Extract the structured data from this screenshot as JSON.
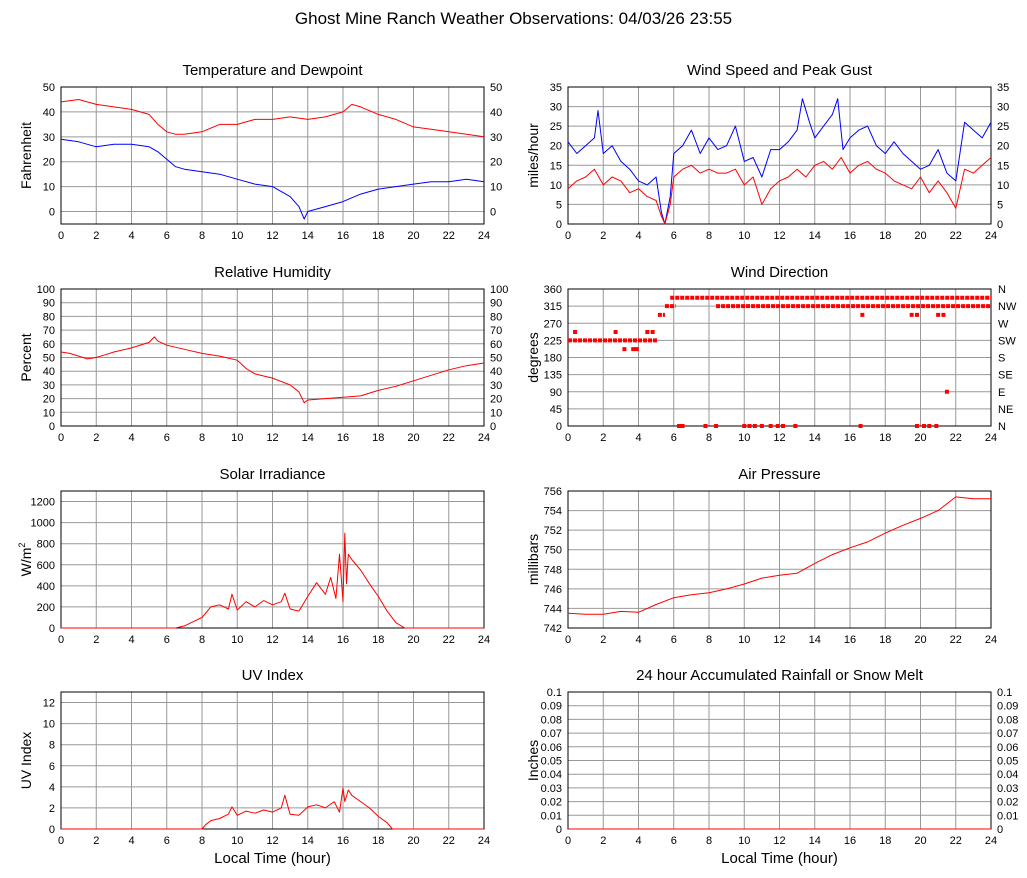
{
  "page": {
    "title": "Ghost Mine Ranch Weather Observations: 04/03/26 23:55"
  },
  "colors": {
    "red": "#ff0000",
    "blue": "#0000ff",
    "grid": "#999999"
  },
  "chart_data": [
    {
      "id": "temp",
      "type": "line",
      "title": "Temperature and Dewpoint",
      "ylabel": "Fahrenheit",
      "xlim": [
        0,
        24
      ],
      "ylim": [
        -5,
        50
      ],
      "yticks": [
        0,
        10,
        20,
        30,
        40,
        50
      ],
      "ytick_labels_right": true,
      "series": [
        {
          "color": "#ff0000",
          "x": [
            0,
            1,
            2,
            3,
            4,
            5,
            5.5,
            6,
            6.5,
            7,
            8,
            9,
            10,
            11,
            12,
            13,
            14,
            15,
            15.5,
            16,
            16.5,
            17,
            18,
            19,
            20,
            21,
            22,
            23,
            24
          ],
          "y": [
            44,
            45,
            43,
            42,
            41,
            39,
            35,
            32,
            31,
            31,
            32,
            35,
            35,
            37,
            37,
            38,
            37,
            38,
            39,
            40,
            43,
            42,
            39,
            37,
            34,
            33,
            32,
            31,
            30
          ]
        },
        {
          "color": "#0000ff",
          "x": [
            0,
            1,
            2,
            3,
            4,
            5,
            5.5,
            6,
            6.5,
            7,
            8,
            9,
            10,
            11,
            12,
            13,
            13.5,
            13.8,
            14,
            15,
            16,
            17,
            18,
            19,
            20,
            21,
            22,
            23,
            24
          ],
          "y": [
            29,
            28,
            26,
            27,
            27,
            26,
            24,
            21,
            18,
            17,
            16,
            15,
            13,
            11,
            10,
            6,
            2,
            -3,
            0,
            2,
            4,
            7,
            9,
            10,
            11,
            12,
            12,
            13,
            12
          ]
        }
      ]
    },
    {
      "id": "wind",
      "type": "line",
      "title": "Wind Speed and Peak Gust",
      "ylabel": "miles/hour",
      "xlim": [
        0,
        24
      ],
      "ylim": [
        0,
        35
      ],
      "yticks": [
        0,
        5,
        10,
        15,
        20,
        25,
        30,
        35
      ],
      "ytick_labels_right": true,
      "series": [
        {
          "color": "#0000ff",
          "x": [
            0,
            0.5,
            1,
            1.5,
            1.7,
            2,
            2.5,
            3,
            3.5,
            4,
            4.5,
            5,
            5.3,
            5.5,
            5.8,
            6,
            6.5,
            7,
            7.5,
            8,
            8.5,
            9,
            9.5,
            10,
            10.5,
            11,
            11.5,
            12,
            12.5,
            13,
            13.3,
            13.7,
            14,
            14.5,
            15,
            15.3,
            15.6,
            16,
            16.5,
            17,
            17.5,
            18,
            18.5,
            19,
            19.5,
            20,
            20.5,
            21,
            21.5,
            22,
            22.5,
            23,
            23.5,
            24
          ],
          "y": [
            21,
            18,
            20,
            22,
            29,
            18,
            20,
            16,
            14,
            11,
            10,
            12,
            3,
            0,
            7,
            18,
            20,
            24,
            18,
            22,
            19,
            20,
            25,
            16,
            17,
            12,
            19,
            19,
            21,
            24,
            32,
            26,
            22,
            25,
            28,
            32,
            19,
            22,
            24,
            25,
            20,
            18,
            21,
            18,
            16,
            14,
            15,
            19,
            13,
            11,
            26,
            24,
            22,
            26
          ]
        },
        {
          "color": "#ff0000",
          "x": [
            0,
            0.5,
            1,
            1.5,
            2,
            2.5,
            3,
            3.5,
            4,
            4.5,
            5,
            5.3,
            5.5,
            5.8,
            6,
            6.5,
            7,
            7.5,
            8,
            8.5,
            9,
            9.5,
            10,
            10.5,
            11,
            11.5,
            12,
            12.5,
            13,
            13.5,
            14,
            14.5,
            15,
            15.5,
            16,
            16.5,
            17,
            17.5,
            18,
            18.5,
            19,
            19.5,
            20,
            20.5,
            21,
            21.5,
            22,
            22.5,
            23,
            23.5,
            24
          ],
          "y": [
            9,
            11,
            12,
            14,
            10,
            12,
            11,
            8,
            9,
            7,
            6,
            2,
            0,
            5,
            12,
            14,
            15,
            13,
            14,
            13,
            13,
            14,
            10,
            12,
            5,
            9,
            11,
            12,
            14,
            12,
            15,
            16,
            14,
            17,
            13,
            15,
            16,
            14,
            13,
            11,
            10,
            9,
            12,
            8,
            11,
            8,
            4,
            14,
            13,
            15,
            17
          ]
        }
      ]
    },
    {
      "id": "rh",
      "type": "line",
      "title": "Relative Humidity",
      "ylabel": "Percent",
      "xlim": [
        0,
        24
      ],
      "ylim": [
        0,
        100
      ],
      "yticks": [
        0,
        10,
        20,
        30,
        40,
        50,
        60,
        70,
        80,
        90,
        100
      ],
      "ytick_labels_right": true,
      "series": [
        {
          "color": "#ff0000",
          "x": [
            0,
            0.5,
            1,
            1.5,
            2,
            2.5,
            3,
            4,
            5,
            5.3,
            5.5,
            6,
            7,
            8,
            9,
            10,
            10.5,
            11,
            12,
            13,
            13.5,
            13.8,
            14,
            15,
            16,
            17,
            18,
            19,
            20,
            21,
            22,
            23,
            24
          ],
          "y": [
            54,
            53,
            51,
            49,
            50,
            52,
            54,
            57,
            61,
            65,
            62,
            59,
            56,
            53,
            51,
            48,
            42,
            38,
            35,
            30,
            25,
            17,
            19,
            20,
            21,
            22,
            26,
            29,
            33,
            37,
            41,
            44,
            46
          ]
        }
      ]
    },
    {
      "id": "wdir",
      "type": "scatter",
      "title": "Wind Direction",
      "ylabel": "degrees",
      "xlim": [
        0,
        24
      ],
      "ylim": [
        0,
        360
      ],
      "yticks": [
        0,
        45,
        90,
        135,
        180,
        225,
        270,
        315,
        360
      ],
      "right_labels": [
        "N",
        "NE",
        "E",
        "SE",
        "S",
        "SW",
        "W",
        "NW",
        "N"
      ],
      "segments": [
        {
          "x0": 0,
          "x1": 5.1,
          "y": 225
        },
        {
          "x0": 5.1,
          "x1": 5.5,
          "y": 292
        },
        {
          "x0": 5.5,
          "x1": 6.1,
          "y": 315
        },
        {
          "x0": 5.8,
          "x1": 24,
          "y": 337
        },
        {
          "x0": 8.4,
          "x1": 24,
          "y": 315
        }
      ],
      "points": [
        {
          "x": 0.4,
          "y": 247
        },
        {
          "x": 2.7,
          "y": 247
        },
        {
          "x": 3.2,
          "y": 202
        },
        {
          "x": 3.7,
          "y": 202
        },
        {
          "x": 3.9,
          "y": 202
        },
        {
          "x": 4.5,
          "y": 247
        },
        {
          "x": 4.8,
          "y": 247
        },
        {
          "x": 6.3,
          "y": 0
        },
        {
          "x": 6.5,
          "y": 0
        },
        {
          "x": 7.8,
          "y": 0
        },
        {
          "x": 8.4,
          "y": 0
        },
        {
          "x": 10.0,
          "y": 0
        },
        {
          "x": 10.3,
          "y": 0
        },
        {
          "x": 10.6,
          "y": 0
        },
        {
          "x": 11.0,
          "y": 0
        },
        {
          "x": 11.5,
          "y": 0
        },
        {
          "x": 11.9,
          "y": 0
        },
        {
          "x": 12.2,
          "y": 0
        },
        {
          "x": 12.9,
          "y": 0
        },
        {
          "x": 16.6,
          "y": 0
        },
        {
          "x": 19.8,
          "y": 0
        },
        {
          "x": 20.2,
          "y": 0
        },
        {
          "x": 20.5,
          "y": 0
        },
        {
          "x": 20.9,
          "y": 0
        },
        {
          "x": 16.7,
          "y": 292
        },
        {
          "x": 19.5,
          "y": 292
        },
        {
          "x": 19.8,
          "y": 292
        },
        {
          "x": 21.0,
          "y": 292
        },
        {
          "x": 21.3,
          "y": 292
        },
        {
          "x": 21.5,
          "y": 90
        }
      ]
    },
    {
      "id": "solar",
      "type": "line",
      "title": "Solar Irradiance",
      "ylabel": "W/m",
      "ylabel_sup": "2",
      "xlim": [
        0,
        24
      ],
      "ylim": [
        0,
        1300
      ],
      "yticks": [
        0,
        200,
        400,
        600,
        800,
        1000,
        1200
      ],
      "ytick_labels_right": false,
      "series": [
        {
          "color": "#ff0000",
          "x": [
            0,
            6.5,
            7,
            7.5,
            8,
            8.5,
            9,
            9.5,
            9.7,
            10,
            10.5,
            11,
            11.5,
            12,
            12.5,
            12.7,
            13,
            13.5,
            14,
            14.5,
            15,
            15.3,
            15.6,
            15.8,
            16,
            16.1,
            16.2,
            16.3,
            16.5,
            17,
            17.5,
            18,
            18.5,
            19,
            19.5,
            20,
            24
          ],
          "y": [
            0,
            0,
            20,
            60,
            100,
            200,
            220,
            180,
            320,
            170,
            250,
            200,
            260,
            220,
            250,
            330,
            180,
            160,
            300,
            430,
            320,
            480,
            280,
            700,
            250,
            900,
            420,
            700,
            650,
            550,
            420,
            300,
            160,
            50,
            0,
            0,
            0
          ]
        }
      ]
    },
    {
      "id": "press",
      "type": "line",
      "title": "Air Pressure",
      "ylabel": "millibars",
      "xlim": [
        0,
        24
      ],
      "ylim": [
        742,
        756
      ],
      "yticks": [
        742,
        744,
        746,
        748,
        750,
        752,
        754,
        756
      ],
      "ytick_labels_right": false,
      "series": [
        {
          "color": "#ff0000",
          "x": [
            0,
            1,
            2,
            3,
            4,
            5,
            6,
            7,
            8,
            9,
            10,
            11,
            12,
            13,
            14,
            15,
            16,
            17,
            18,
            19,
            20,
            21,
            22,
            23,
            24
          ],
          "y": [
            743.5,
            743.4,
            743.4,
            743.7,
            743.6,
            744.4,
            745.1,
            745.4,
            745.6,
            746.0,
            746.5,
            747.1,
            747.4,
            747.6,
            748.6,
            749.5,
            750.2,
            750.8,
            751.7,
            752.5,
            753.2,
            754.0,
            755.4,
            755.2,
            755.2
          ]
        }
      ]
    },
    {
      "id": "uv",
      "type": "line",
      "title": "UV Index",
      "ylabel": "UV Index",
      "xlabel": "Local Time (hour)",
      "xlim": [
        0,
        24
      ],
      "ylim": [
        0,
        13
      ],
      "yticks": [
        0,
        2,
        4,
        6,
        8,
        10,
        12
      ],
      "ytick_labels_right": false,
      "series": [
        {
          "color": "#ff0000",
          "x": [
            0,
            8,
            8.2,
            8.5,
            9,
            9.5,
            9.7,
            10,
            10.5,
            11,
            11.5,
            12,
            12.5,
            12.7,
            13,
            13.5,
            14,
            14.5,
            15,
            15.5,
            15.8,
            16,
            16.1,
            16.3,
            16.5,
            17,
            17.5,
            18,
            18.5,
            18.8,
            24
          ],
          "y": [
            0,
            0,
            0.4,
            0.8,
            1.0,
            1.4,
            2.1,
            1.3,
            1.7,
            1.5,
            1.8,
            1.6,
            2.0,
            3.2,
            1.4,
            1.3,
            2.1,
            2.3,
            2.0,
            2.6,
            1.6,
            3.9,
            2.6,
            3.7,
            3.2,
            2.6,
            2.0,
            1.2,
            0.6,
            0,
            0
          ]
        }
      ]
    },
    {
      "id": "rain",
      "type": "line",
      "title": "24 hour Accumulated Rainfall or Snow Melt",
      "ylabel": "Inches",
      "xlabel": "Local Time (hour)",
      "xlim": [
        0,
        24
      ],
      "ylim": [
        0,
        0.1
      ],
      "yticks": [
        0,
        0.01,
        0.02,
        0.03,
        0.04,
        0.05,
        0.06,
        0.07,
        0.08,
        0.09,
        0.1
      ],
      "ytick_labels_right": true,
      "series": [
        {
          "color": "#ff0000",
          "x": [
            0,
            24
          ],
          "y": [
            0,
            0
          ]
        }
      ]
    }
  ]
}
